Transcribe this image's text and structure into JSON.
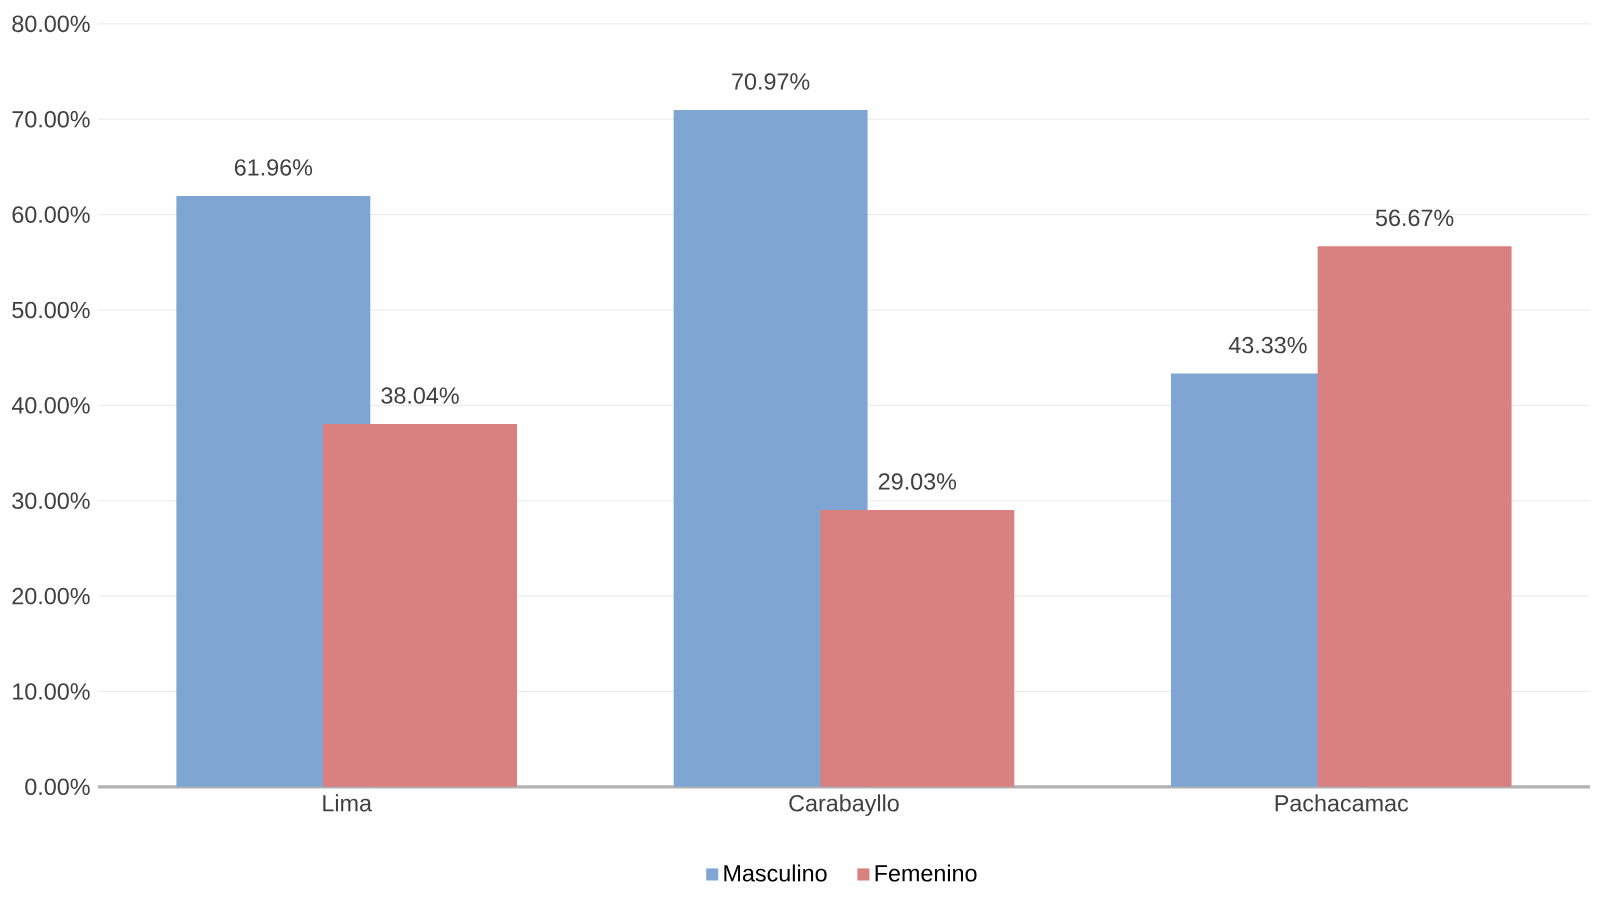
{
  "chart_data": {
    "type": "bar",
    "categories": [
      "Lima",
      "Carabayllo",
      "Pachacamac"
    ],
    "series": [
      {
        "name": "Masculino",
        "color": "#7fa6d3",
        "values": [
          61.96,
          70.97,
          43.33
        ],
        "value_labels": [
          "61.96%",
          "70.97%",
          "43.33%"
        ]
      },
      {
        "name": "Femenino",
        "color": "#d98080",
        "values": [
          38.04,
          29.03,
          56.67
        ],
        "value_labels": [
          "38.04%",
          "29.03%",
          "56.67%"
        ]
      }
    ],
    "ylim": [
      0,
      80
    ],
    "yticks": [
      {
        "value": 0,
        "label": "0.00%"
      },
      {
        "value": 10,
        "label": "10.00%"
      },
      {
        "value": 20,
        "label": "20.00%"
      },
      {
        "value": 30,
        "label": "30.00%"
      },
      {
        "value": 40,
        "label": "40.00%"
      },
      {
        "value": 50,
        "label": "50.00%"
      },
      {
        "value": 60,
        "label": "60.00%"
      },
      {
        "value": 70,
        "label": "70.00%"
      },
      {
        "value": 80,
        "label": "80.00%"
      }
    ],
    "grid": "y",
    "legend": "bottom"
  }
}
